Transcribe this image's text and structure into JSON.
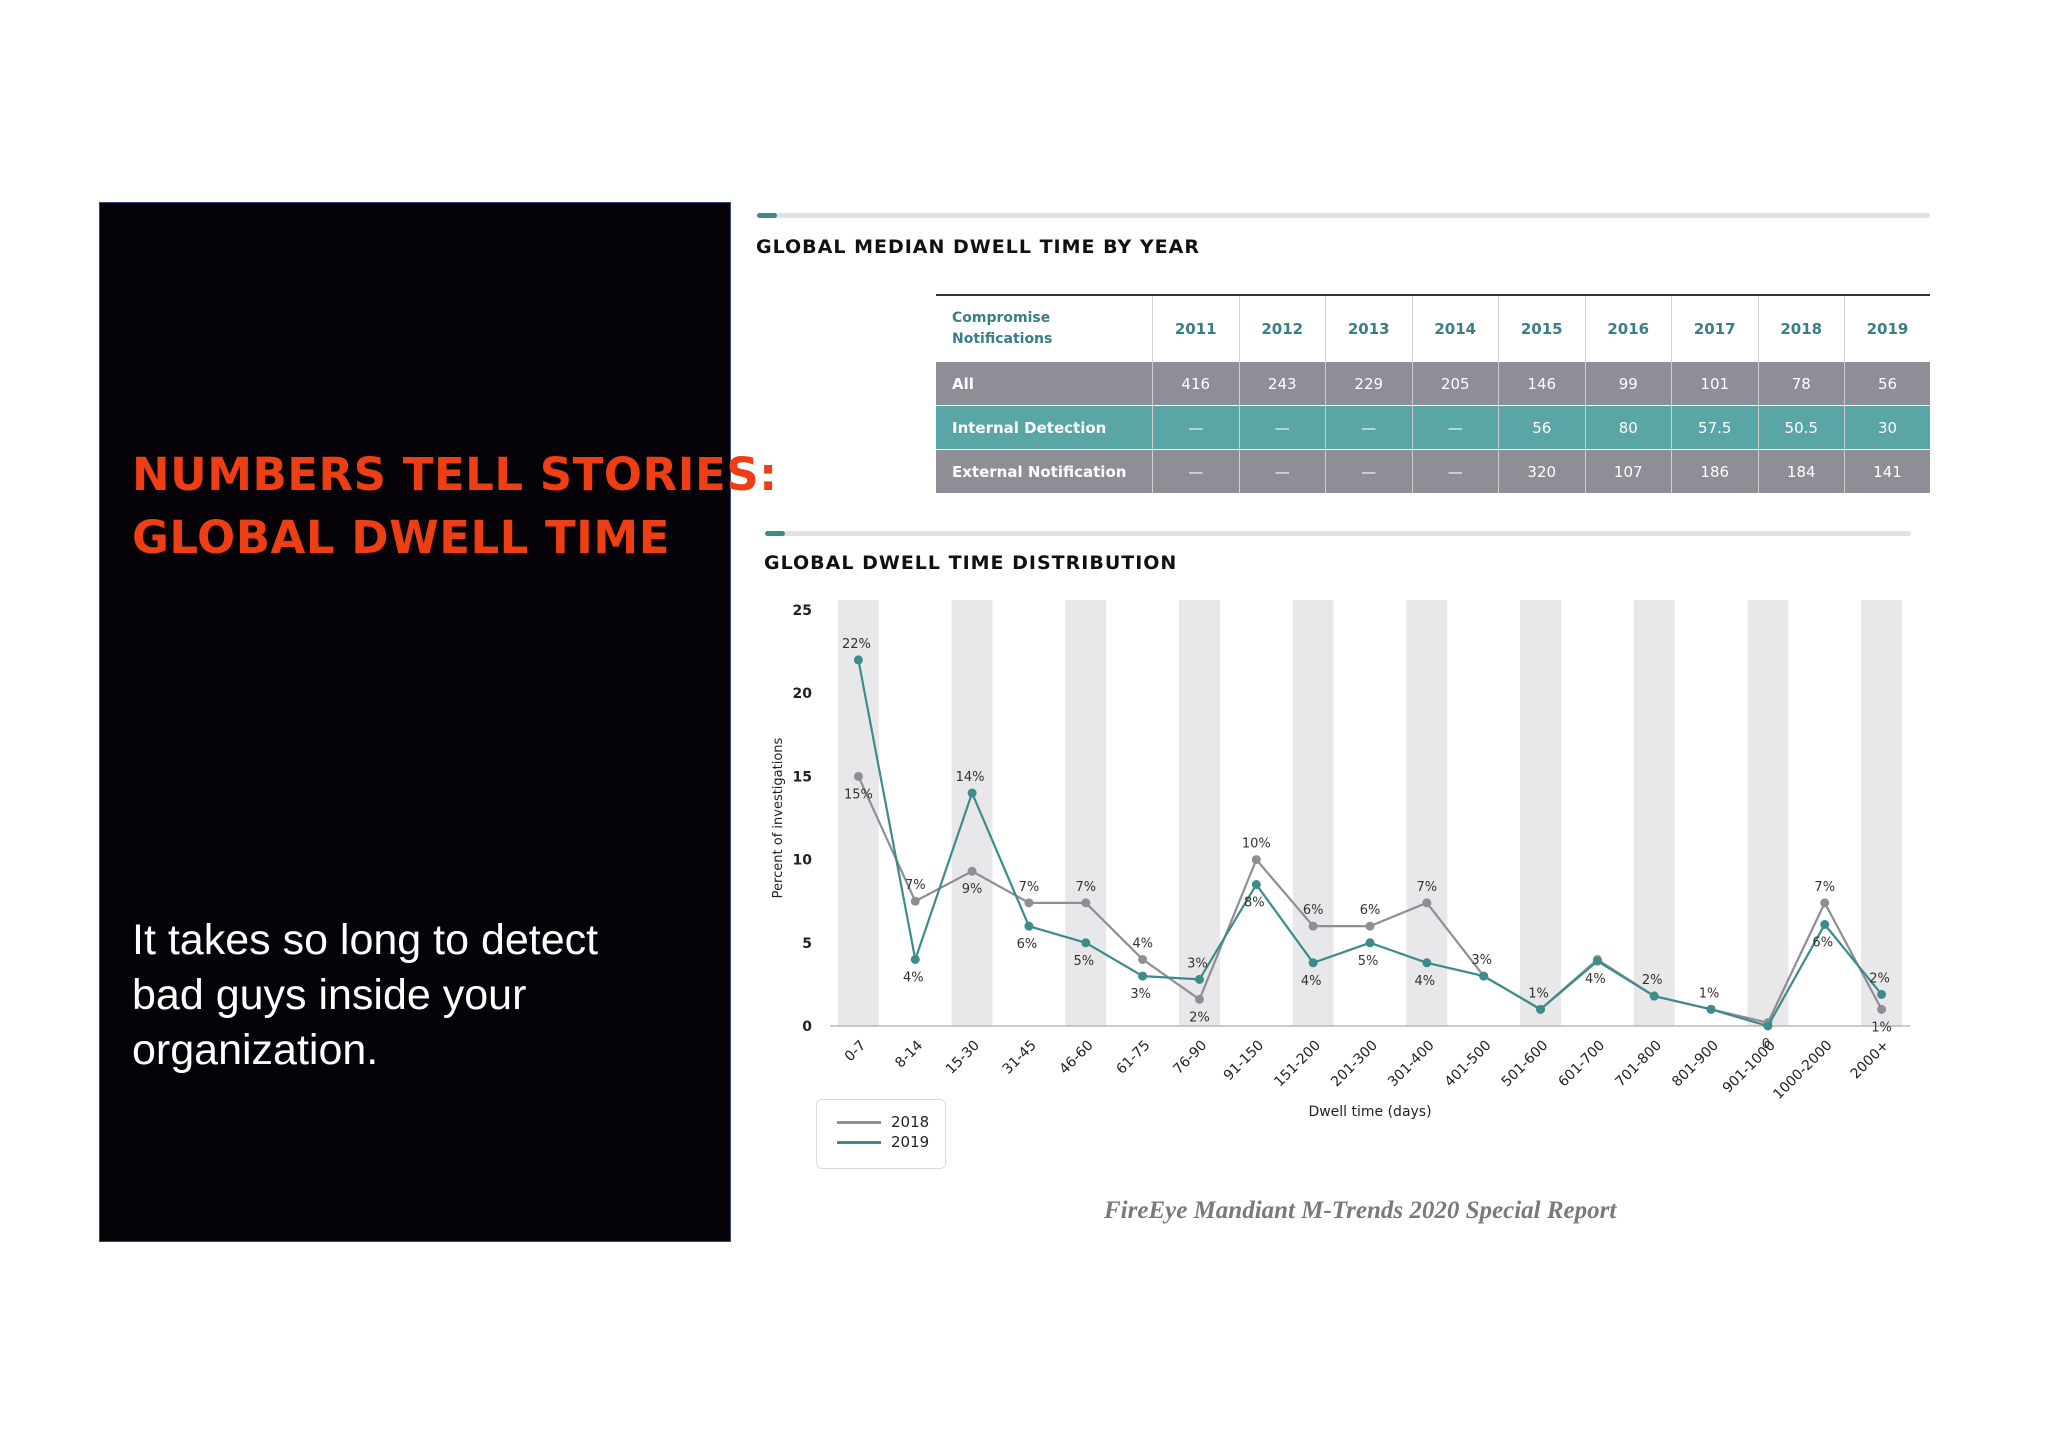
{
  "slide": {
    "headline": [
      "NUMBERS TELL STORIES:",
      "GLOBAL DWELL TIME"
    ],
    "subtext": "It takes so long to detect bad guys inside your organization.",
    "source": "FireEye Mandiant M-Trends 2020 Special Report"
  },
  "colors": {
    "accent": "#ee3e14",
    "teal": "#3d8b8b",
    "gray": "#8e8e96",
    "panel": "#050307"
  },
  "table": {
    "title": "GLOBAL MEDIAN DWELL TIME BY YEAR",
    "rowheader": "Compromise Notifications",
    "years": [
      "2011",
      "2012",
      "2013",
      "2014",
      "2015",
      "2016",
      "2017",
      "2018",
      "2019"
    ],
    "rows": [
      {
        "label": "All",
        "values": [
          "416",
          "243",
          "229",
          "205",
          "146",
          "99",
          "101",
          "78",
          "56"
        ]
      },
      {
        "label": "Internal Detection",
        "values": [
          "—",
          "—",
          "—",
          "—",
          "56",
          "80",
          "57.5",
          "50.5",
          "30"
        ]
      },
      {
        "label": "External Notification",
        "values": [
          "—",
          "—",
          "—",
          "—",
          "320",
          "107",
          "186",
          "184",
          "141"
        ]
      }
    ]
  },
  "chart_data": {
    "type": "line",
    "title": "GLOBAL DWELL TIME DISTRIBUTION",
    "xlabel": "Dwell time (days)",
    "ylabel": "Percent of investigations",
    "ylim": [
      0,
      25
    ],
    "yticks": [
      "0",
      "5",
      "10",
      "15",
      "20",
      "25"
    ],
    "categories": [
      "0-7",
      "8-14",
      "15-30",
      "31-45",
      "46-60",
      "61-75",
      "76-90",
      "91-150",
      "151-200",
      "201-300",
      "301-400",
      "401-500",
      "501-600",
      "601-700",
      "701-800",
      "801-900",
      "901-1000",
      "1000-2000",
      "2000+"
    ],
    "series": [
      {
        "name": "2018",
        "color": "#8e8e96",
        "values": [
          15,
          7.5,
          9.3,
          7.4,
          7.4,
          4,
          1.6,
          10,
          6,
          6,
          7.4,
          3,
          1,
          4,
          1.8,
          1,
          0.2,
          7.4,
          1
        ],
        "labels": [
          "15%",
          "7%",
          "9%",
          "7%",
          "7%",
          "4%",
          "2%",
          "10%",
          "6%",
          "6%",
          "7%",
          "",
          "",
          "",
          "",
          "",
          "",
          "7%",
          "1%"
        ]
      },
      {
        "name": "2019",
        "color": "#3d8b8b",
        "values": [
          22,
          4,
          14,
          6,
          5,
          3,
          2.8,
          8.5,
          3.8,
          5,
          3.8,
          3,
          1,
          3.9,
          1.8,
          1,
          0,
          6.1,
          1.9
        ],
        "labels": [
          "22%",
          "4%",
          "14%",
          "6%",
          "5%",
          "3%",
          "3%",
          "8%",
          "4%",
          "5%",
          "4%",
          "3%",
          "1%",
          "4%",
          "2%",
          "1%",
          "0",
          "6%",
          "2%"
        ]
      }
    ],
    "legend": [
      "2018",
      "2019"
    ]
  }
}
